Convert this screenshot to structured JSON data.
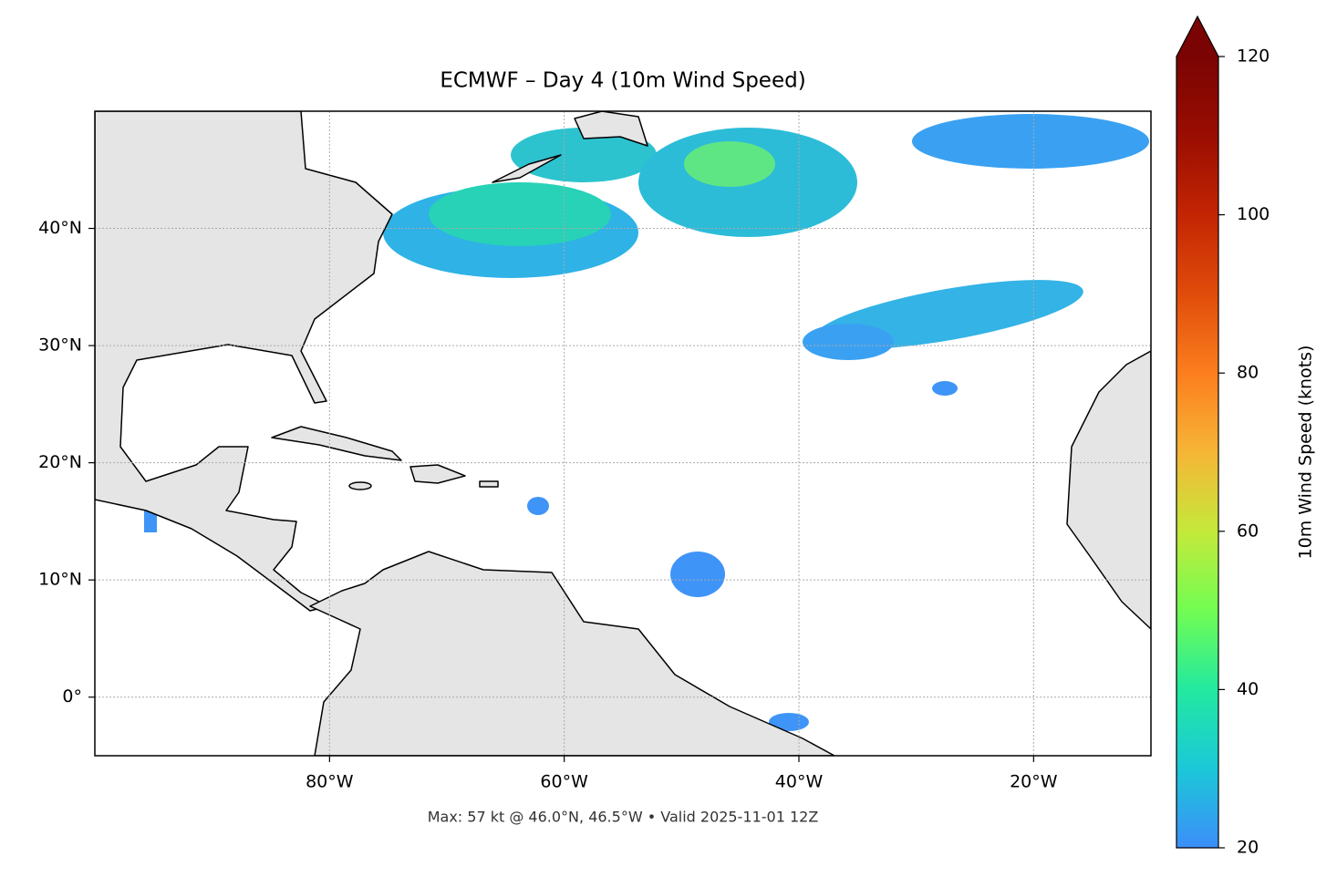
{
  "title": "ECMWF – Day 4 (10m Wind Speed)",
  "caption": "Max: 57 kt @ 46.0°N, 46.5°W • Valid 2025-11-01 12Z",
  "map": {
    "xlim": [
      -100,
      -10
    ],
    "ylim": [
      -5,
      50
    ],
    "grid": true,
    "xticks": [
      {
        "value": -80,
        "label": "80°W"
      },
      {
        "value": -60,
        "label": "60°W"
      },
      {
        "value": -40,
        "label": "40°W"
      },
      {
        "value": -20,
        "label": "20°W"
      }
    ],
    "yticks": [
      {
        "value": 0,
        "label": "0°"
      },
      {
        "value": 10,
        "label": "10°N"
      },
      {
        "value": 20,
        "label": "20°N"
      },
      {
        "value": 30,
        "label": "30°N"
      },
      {
        "value": 40,
        "label": "40°N"
      }
    ]
  },
  "colorbar": {
    "label": "10m Wind Speed (knots)",
    "clim": [
      20,
      120
    ],
    "ticks": [
      20,
      40,
      60,
      80,
      100,
      120
    ],
    "extend": "max",
    "colors": [
      "#3c8ef9",
      "#1bc8d8",
      "#22e9a0",
      "#72fd52",
      "#c4e93a",
      "#f6b536",
      "#fc7e1e",
      "#e04c0b",
      "#c32503",
      "#9a0d02",
      "#7a0403"
    ]
  }
}
